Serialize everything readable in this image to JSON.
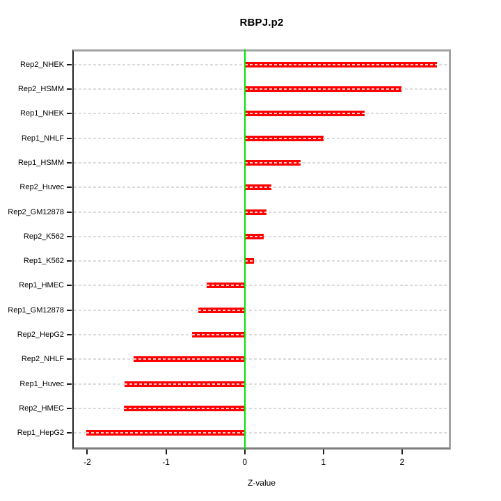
{
  "title": "RBPJ.p2",
  "xlabel": "Z-value",
  "chart_data": {
    "type": "bar",
    "orientation": "horizontal",
    "title": "RBPJ.p2",
    "xlabel": "Z-value",
    "ylabel": "",
    "categories": [
      "Rep2_NHEK",
      "Rep2_HSMM",
      "Rep1_NHEK",
      "Rep1_NHLF",
      "Rep1_HSMM",
      "Rep2_Huvec",
      "Rep2_GM12878",
      "Rep2_K562",
      "Rep1_K562",
      "Rep1_HMEC",
      "Rep1_GM12878",
      "Rep2_HepG2",
      "Rep2_NHLF",
      "Rep1_Huvec",
      "Rep2_HMEC",
      "Rep1_HepG2"
    ],
    "values": [
      2.44,
      1.99,
      1.52,
      1.0,
      0.71,
      0.34,
      0.28,
      0.24,
      0.12,
      -0.48,
      -0.59,
      -0.67,
      -1.41,
      -1.53,
      -1.54,
      -2.01
    ],
    "x_ticks": [
      -2,
      -1,
      0,
      1,
      2
    ],
    "xlim": [
      -2.19,
      2.62
    ],
    "grid": "dashed horizontal line per category",
    "legend": "none",
    "bar_color": "#ff0000",
    "zero_line_color": "#00e400",
    "grid_color": "#dadada",
    "box_color": "#a3a3a3"
  }
}
